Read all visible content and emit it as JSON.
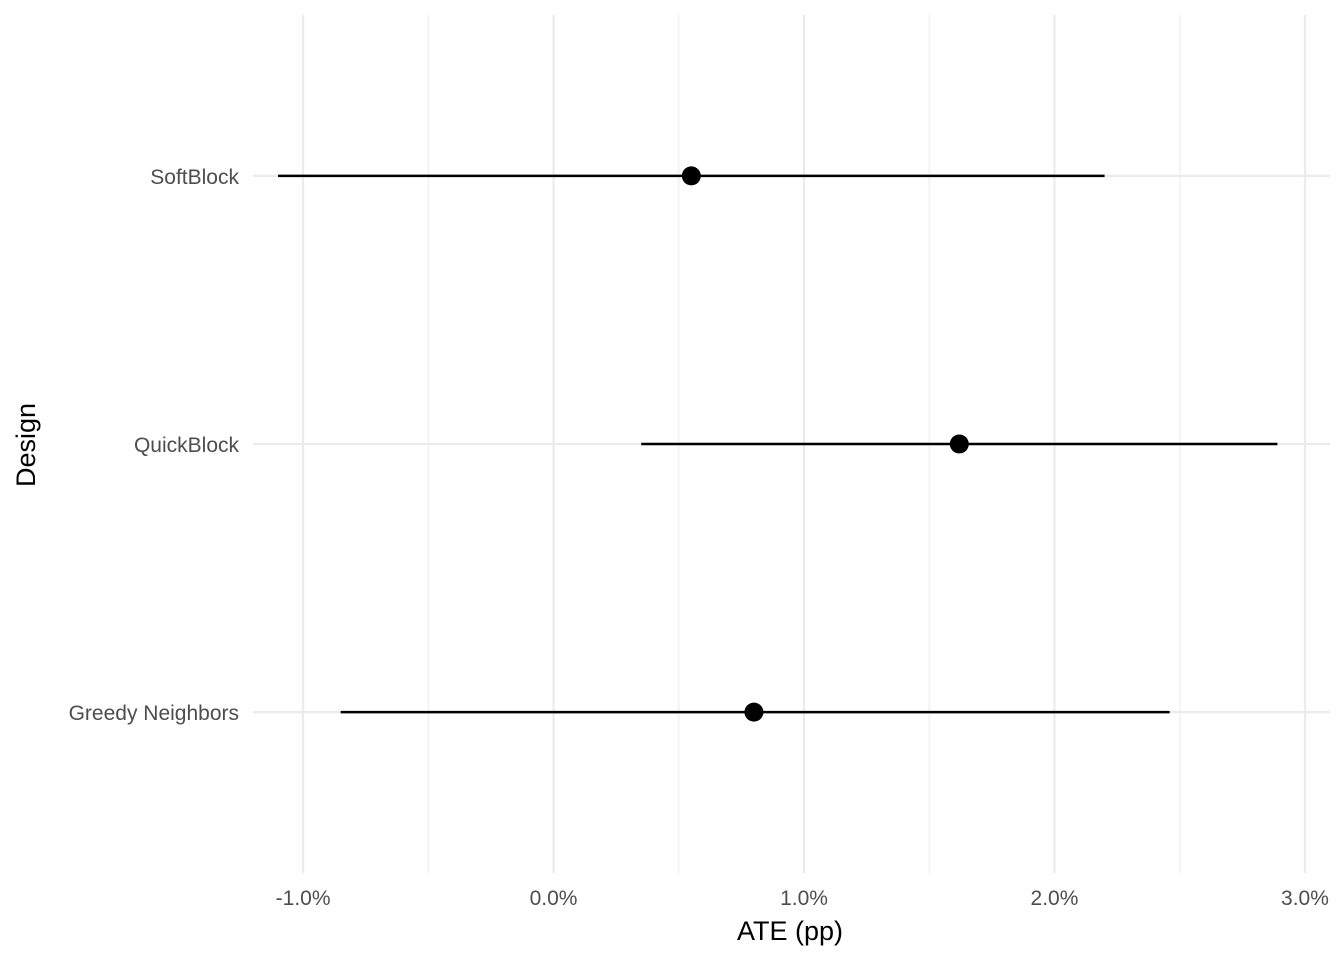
{
  "chart_data": {
    "type": "scatter",
    "subtype": "point-range",
    "xlabel": "ATE (pp)",
    "ylabel": "Design",
    "xlim": [
      -1.2,
      3.1
    ],
    "x_ticks": [
      -1.0,
      0.0,
      1.0,
      2.0,
      3.0
    ],
    "x_tick_labels": [
      "-1.0%",
      "0.0%",
      "1.0%",
      "2.0%",
      "3.0%"
    ],
    "x_minor_ticks": [
      -0.5,
      0.5,
      1.5,
      2.5
    ],
    "grid": true,
    "categories": [
      "SoftBlock",
      "QuickBlock",
      "Greedy Neighbors"
    ],
    "points": [
      {
        "design": "SoftBlock",
        "estimate": 0.55,
        "lower": -1.1,
        "upper": 2.2
      },
      {
        "design": "QuickBlock",
        "estimate": 1.62,
        "lower": 0.35,
        "upper": 2.89
      },
      {
        "design": "Greedy Neighbors",
        "estimate": 0.8,
        "lower": -0.85,
        "upper": 2.46
      }
    ],
    "colors": {
      "point": "#000000",
      "interval": "#000000",
      "grid": "#ebebeb"
    }
  }
}
